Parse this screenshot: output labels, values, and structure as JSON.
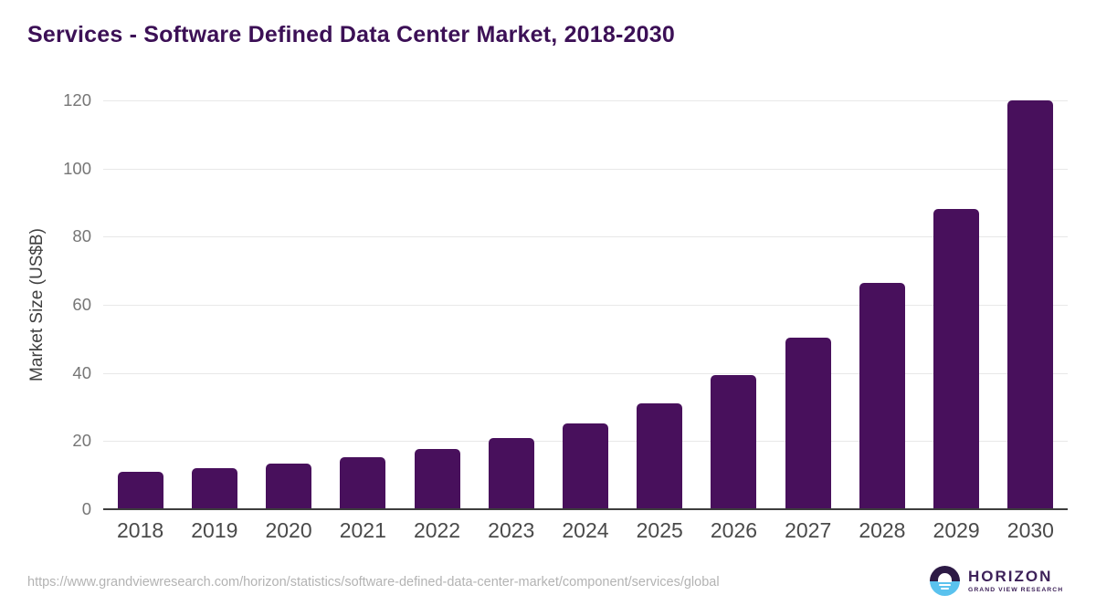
{
  "header": {
    "title": "Services - Software Defined Data Center Market, 2018-2030"
  },
  "chart_data": {
    "type": "bar",
    "title": "Services - Software Defined Data Center Market, 2018-2030",
    "categories": [
      "2018",
      "2019",
      "2020",
      "2021",
      "2022",
      "2023",
      "2024",
      "2025",
      "2026",
      "2027",
      "2028",
      "2029",
      "2030"
    ],
    "values": [
      11,
      12,
      13.5,
      15.4,
      17.7,
      21,
      25.1,
      31.1,
      39.5,
      50.4,
      66.3,
      88.1,
      120
    ],
    "xlabel": "",
    "ylabel": "Market Size (US$B)",
    "ylim": [
      0,
      120
    ],
    "yticks": [
      0,
      20,
      40,
      60,
      80,
      100,
      120
    ],
    "grid": true,
    "legend": "none",
    "bar_color": "#48105c"
  },
  "footer": {
    "source_url": "https://www.grandviewresearch.com/horizon/statistics/software-defined-data-center-market/component/services/global",
    "logo": {
      "brand": "HORIZON",
      "subbrand": "GRAND VIEW RESEARCH"
    }
  },
  "colors": {
    "background": "#ffffff",
    "title": "#3c1056",
    "bar": "#48105c",
    "axis": "#3d3d3d",
    "gridline": "#e8e8e8",
    "y_tick": "#767676",
    "x_tick": "#4a4a4a",
    "source": "#b3b3b3",
    "logo_dark": "#2d1a45",
    "logo_blue": "#5ac2ee",
    "logo_text": "#3d2159"
  }
}
